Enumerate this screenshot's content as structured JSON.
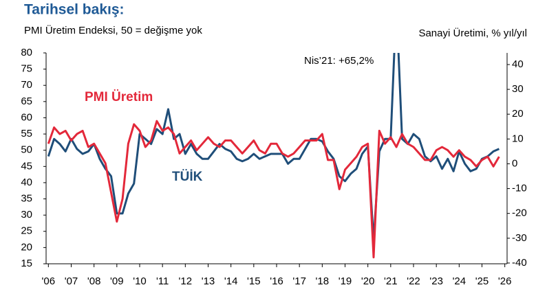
{
  "chart_data": {
    "type": "line",
    "title": "Tarihsel bakış:",
    "subtitle": "PMI Üretim Endeksi, 50 = değişme yok",
    "y2_label": "Sanayi Üretimi, % yıl/yıl",
    "annotation": "Nis’21: +65,2%",
    "x": [
      2006.0,
      2006.25,
      2006.5,
      2006.75,
      2007.0,
      2007.25,
      2007.5,
      2007.75,
      2008.0,
      2008.25,
      2008.5,
      2008.75,
      2009.0,
      2009.25,
      2009.5,
      2009.75,
      2010.0,
      2010.25,
      2010.5,
      2010.75,
      2011.0,
      2011.25,
      2011.5,
      2011.75,
      2012.0,
      2012.25,
      2012.5,
      2012.75,
      2013.0,
      2013.25,
      2013.5,
      2013.75,
      2014.0,
      2014.25,
      2014.5,
      2014.75,
      2015.0,
      2015.25,
      2015.5,
      2015.75,
      2016.0,
      2016.25,
      2016.5,
      2016.75,
      2017.0,
      2017.25,
      2017.5,
      2017.75,
      2018.0,
      2018.25,
      2018.5,
      2018.75,
      2019.0,
      2019.25,
      2019.5,
      2019.75,
      2020.0,
      2020.25,
      2020.5,
      2020.75,
      2021.0,
      2021.25,
      2021.5,
      2021.75,
      2022.0,
      2022.25,
      2022.5,
      2022.75,
      2023.0,
      2023.25,
      2023.5,
      2023.75,
      2024.0,
      2024.25,
      2024.5,
      2024.75,
      2025.0,
      2025.25,
      2025.5,
      2025.75
    ],
    "series": [
      {
        "name": "PMI Üretim",
        "color": "#e3283a",
        "axis": "y",
        "values": [
          52,
          57,
          55,
          56,
          53,
          55,
          56,
          51,
          52,
          49,
          46,
          37,
          28,
          35,
          52,
          58,
          56,
          51,
          53,
          59,
          56,
          57,
          55,
          49,
          51,
          53,
          50,
          52,
          54,
          52,
          51,
          53,
          53,
          51,
          49,
          51,
          53,
          50,
          49,
          52,
          52,
          49,
          48,
          49,
          51,
          53,
          53,
          53,
          55,
          47,
          47,
          38,
          44,
          46,
          48,
          51,
          52,
          17,
          56,
          52,
          54,
          51,
          55,
          52,
          51,
          49,
          47,
          47,
          50,
          51,
          50,
          48,
          50,
          48,
          47,
          45,
          47,
          48,
          45,
          48
        ]
      },
      {
        "name": "TÜİK",
        "color": "#1f4e79",
        "axis": "y2",
        "values": [
          3,
          10,
          8,
          5,
          10,
          6,
          4,
          5,
          8,
          2,
          -2,
          -5,
          -20,
          -20,
          -12,
          -8,
          12,
          10,
          8,
          14,
          12,
          22,
          10,
          12,
          4,
          8,
          4,
          2,
          2,
          5,
          8,
          6,
          5,
          2,
          1,
          2,
          4,
          2,
          3,
          4,
          4,
          4,
          0,
          2,
          2,
          6,
          10,
          10,
          9,
          5,
          2,
          -5,
          -7,
          -4,
          -2,
          4,
          7,
          -31,
          5,
          10,
          10,
          65.2,
          10,
          8,
          12,
          10,
          3,
          1,
          3,
          -2,
          2,
          -3,
          5,
          0,
          -3,
          -2,
          2,
          3,
          5,
          6
        ]
      }
    ],
    "xlim": [
      2005.9,
      2026.1
    ],
    "xticks": [
      {
        "value": 2006,
        "label": "'06"
      },
      {
        "value": 2007,
        "label": "'07"
      },
      {
        "value": 2008,
        "label": "'08"
      },
      {
        "value": 2009,
        "label": "'09"
      },
      {
        "value": 2010,
        "label": "'10"
      },
      {
        "value": 2011,
        "label": "'11"
      },
      {
        "value": 2012,
        "label": "'12"
      },
      {
        "value": 2013,
        "label": "'13"
      },
      {
        "value": 2014,
        "label": "'14"
      },
      {
        "value": 2015,
        "label": "'15"
      },
      {
        "value": 2016,
        "label": "'16"
      },
      {
        "value": 2017,
        "label": "'17"
      },
      {
        "value": 2018,
        "label": "'18"
      },
      {
        "value": 2019,
        "label": "'19"
      },
      {
        "value": 2020,
        "label": "'20"
      },
      {
        "value": 2021,
        "label": "'21"
      },
      {
        "value": 2022,
        "label": "'22"
      },
      {
        "value": 2023,
        "label": "'23"
      },
      {
        "value": 2024,
        "label": "'24"
      },
      {
        "value": 2025,
        "label": "'25"
      },
      {
        "value": 2026,
        "label": "'26"
      }
    ],
    "ylim": [
      15,
      80
    ],
    "yticks": [
      15,
      20,
      25,
      30,
      35,
      40,
      45,
      50,
      55,
      60,
      65,
      70,
      75,
      80
    ],
    "y2lim": [
      -40.3,
      44.7
    ],
    "y2ticks": [
      -40,
      -30,
      -20,
      -10,
      0,
      10,
      20,
      30,
      40
    ],
    "grid": false
  }
}
